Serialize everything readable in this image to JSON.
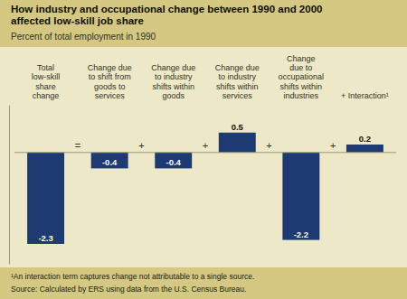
{
  "chart_data": {
    "type": "bar",
    "title": "How industry and occupational change between 1990 and 2000\naffected low-skill job share",
    "subtitle": "Percent of total employment in 1990",
    "categories": [
      "Total\nlow-skill\nshare\nchange",
      "Change due\nto shift from\ngoods to\nservices",
      "Change due\nto industry\nshifts within\ngoods",
      "Change due\nto industry\nshifts within\nservices",
      "Change\ndue to\noccupational\nshifts within\nindustries",
      "+ Interaction¹"
    ],
    "values": [
      -2.3,
      -0.4,
      -0.4,
      0.5,
      -2.2,
      0.2
    ],
    "color": "#1e3a72",
    "ylim": [
      -2.8,
      1.2
    ],
    "data_labels": true,
    "tick_labels": "x",
    "operators": [
      "=",
      "+",
      "+",
      "+",
      "+"
    ],
    "footnotes": [
      "¹An interaction term captures change not attributable to a single source.",
      "Source:  Calculated by ERS using data from the U.S. Census Bureau."
    ]
  }
}
